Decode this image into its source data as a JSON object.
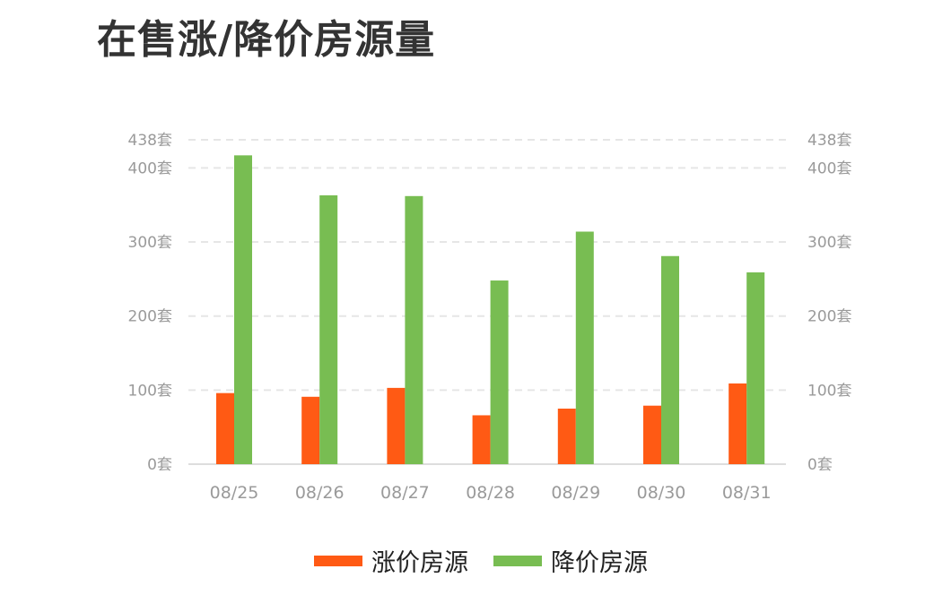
{
  "title": "在售涨/降价房源量",
  "colors": {
    "up": "#ff5a14",
    "down": "#78bd52",
    "grid": "#e6e6e6",
    "axis_text": "#9a9a9a"
  },
  "chart_data": {
    "type": "bar",
    "categories": [
      "08/25",
      "08/26",
      "08/27",
      "08/28",
      "08/29",
      "08/30",
      "08/31"
    ],
    "series": [
      {
        "name": "涨价房源",
        "values": [
          96,
          91,
          103,
          66,
          75,
          79,
          109
        ],
        "color": "#ff5a14"
      },
      {
        "name": "降价房源",
        "values": [
          417,
          363,
          362,
          248,
          314,
          281,
          259
        ],
        "color": "#78bd52"
      }
    ],
    "ylim": [
      0,
      438
    ],
    "yticks": [
      0,
      100,
      200,
      300,
      400,
      438
    ],
    "ytick_labels": [
      "0套",
      "100套",
      "200套",
      "300套",
      "400套",
      "438套"
    ],
    "grid": true,
    "legend_position": "bottom",
    "dual_axis_labels": true
  }
}
